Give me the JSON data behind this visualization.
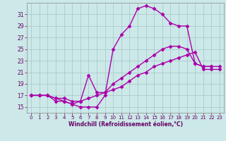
{
  "background_color": "#cce8e8",
  "grid_color": "#aacccc",
  "line_color": "#aa00aa",
  "marker_style": "D",
  "marker_size": 2.5,
  "line_width": 1.0,
  "xlabel": "Windchill (Refroidissement éolien,°C)",
  "xlabel_color": "#660066",
  "tick_color": "#660066",
  "xlim": [
    -0.5,
    23.5
  ],
  "ylim": [
    14,
    33
  ],
  "yticks": [
    15,
    17,
    19,
    21,
    23,
    25,
    27,
    29,
    31
  ],
  "xticks": [
    0,
    1,
    2,
    3,
    4,
    5,
    6,
    7,
    8,
    9,
    10,
    11,
    12,
    13,
    14,
    15,
    16,
    17,
    18,
    19,
    20,
    21,
    22,
    23
  ],
  "series": [
    {
      "x": [
        0,
        1,
        2,
        3,
        4,
        5,
        6,
        7,
        8,
        9,
        10,
        11,
        12,
        13,
        14,
        15,
        16,
        17,
        18,
        19,
        20,
        21,
        22,
        23
      ],
      "y": [
        17,
        17,
        17,
        16,
        16,
        15.5,
        15,
        15,
        15,
        17,
        25,
        27.5,
        29,
        32,
        32.5,
        32,
        31,
        29.5,
        29,
        29,
        22.5,
        22,
        22,
        null
      ]
    },
    {
      "x": [
        0,
        1,
        2,
        3,
        4,
        5,
        6,
        7,
        8,
        9,
        10,
        11,
        12,
        13,
        14,
        15,
        16,
        17,
        18,
        19,
        20,
        21,
        22,
        23
      ],
      "y": [
        17,
        17,
        17,
        16.5,
        16,
        15.5,
        16,
        20.5,
        17.5,
        17.5,
        19,
        20,
        21,
        22,
        23,
        24,
        25,
        25.5,
        25.5,
        25,
        22.5,
        22,
        22,
        22
      ]
    },
    {
      "x": [
        0,
        1,
        2,
        3,
        4,
        5,
        6,
        7,
        8,
        9,
        10,
        11,
        12,
        13,
        14,
        15,
        16,
        17,
        18,
        19,
        20,
        21,
        22,
        23
      ],
      "y": [
        17,
        17,
        17,
        16.5,
        16.5,
        16,
        16,
        16.5,
        17,
        17.5,
        18,
        18.5,
        19.5,
        20.5,
        21,
        22,
        22.5,
        23,
        23.5,
        24,
        24.5,
        21.5,
        21.5,
        21.5
      ]
    }
  ]
}
